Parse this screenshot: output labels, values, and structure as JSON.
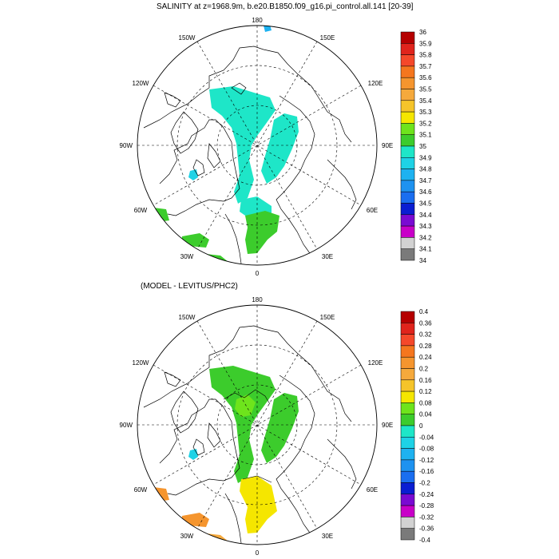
{
  "top_panel": {
    "title": "SALINITY at z=1968.9m, b.e20.B1850.f09_g16.pi_control.all.141 [20-39]",
    "lon_labels": {
      "top": "180",
      "bottom": "0",
      "left": "90W",
      "right": "90E",
      "ul1": "150W",
      "ul2": "120W",
      "ur1": "150E",
      "ur2": "120E",
      "ll1": "60W",
      "ll2": "30W",
      "lr1": "60E",
      "lr2": "30E"
    },
    "colorbar": {
      "labels": [
        "36",
        "35.9",
        "35.8",
        "35.7",
        "35.6",
        "35.5",
        "35.4",
        "35.3",
        "35.2",
        "35.1",
        "35",
        "34.9",
        "34.8",
        "34.7",
        "34.6",
        "34.5",
        "34.4",
        "34.3",
        "34.2",
        "34.1",
        "34"
      ],
      "colors": [
        "#b50000",
        "#e0241c",
        "#f5482a",
        "#f5761e",
        "#f5952e",
        "#f5a93c",
        "#f5c42a",
        "#f5e600",
        "#6ee41c",
        "#3ccc2c",
        "#1ee6c8",
        "#1ed2e6",
        "#1eb2f0",
        "#1e92f0",
        "#1a6ef0",
        "#0a1ed2",
        "#7a0ad2",
        "#c800c8",
        "#d2d2d2",
        "#7a7a7a"
      ]
    }
  },
  "bottom_panel": {
    "title": "(MODEL - LEVITUS/PHC2)",
    "lon_labels": {
      "top": "180",
      "bottom": "0",
      "left": "90W",
      "right": "90E",
      "ul1": "150W",
      "ul2": "120W",
      "ur1": "150E",
      "ur2": "120E",
      "ll1": "60W",
      "ll2": "30W",
      "lr1": "60E",
      "lr2": "30E"
    },
    "colorbar": {
      "labels": [
        "0.4",
        "0.36",
        "0.32",
        "0.28",
        "0.24",
        "0.2",
        "0.16",
        "0.12",
        "0.08",
        "0.04",
        "0",
        "-0.04",
        "-0.08",
        "-0.12",
        "-0.16",
        "-0.2",
        "-0.24",
        "-0.28",
        "-0.32",
        "-0.36",
        "-0.4"
      ],
      "colors": [
        "#b50000",
        "#e0241c",
        "#f5482a",
        "#f5761e",
        "#f5952e",
        "#f5a93c",
        "#f5c42a",
        "#f5e600",
        "#6ee41c",
        "#3ccc2c",
        "#1ee6c8",
        "#1ed2e6",
        "#1eb2f0",
        "#1e92f0",
        "#1a6ef0",
        "#0a1ed2",
        "#7a0ad2",
        "#c800c8",
        "#d2d2d2",
        "#7a7a7a"
      ]
    }
  }
}
